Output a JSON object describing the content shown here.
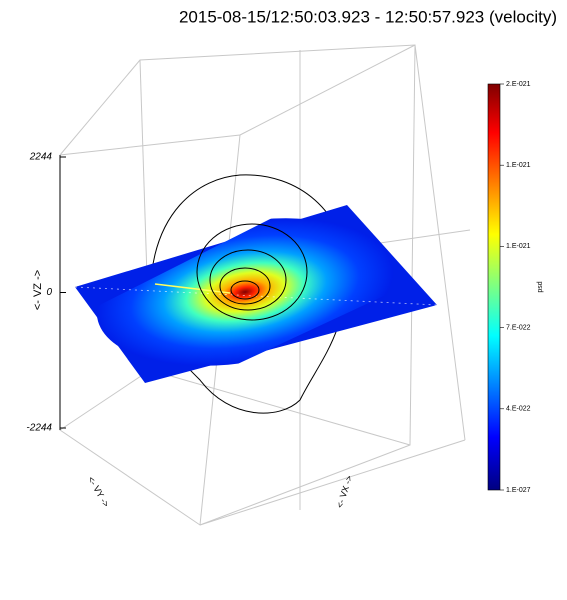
{
  "chart_data": {
    "type": "slice3d",
    "title": "2015-08-15/12:50:03.923 - 12:50:57.923  (velocity)",
    "zlabel": "<- VZ ->",
    "xlabel": "<- VX ->",
    "ylabel": "<- VY ->",
    "zlim": [
      -2244,
      2244
    ],
    "zticks": [
      -2244,
      0,
      2244
    ],
    "colorbar_title": "psd",
    "colorbar_labels": [
      "2.E-021",
      "1.E-021",
      "1.E-021",
      "7.E-022",
      "4.E-022",
      "1.E-027"
    ]
  }
}
